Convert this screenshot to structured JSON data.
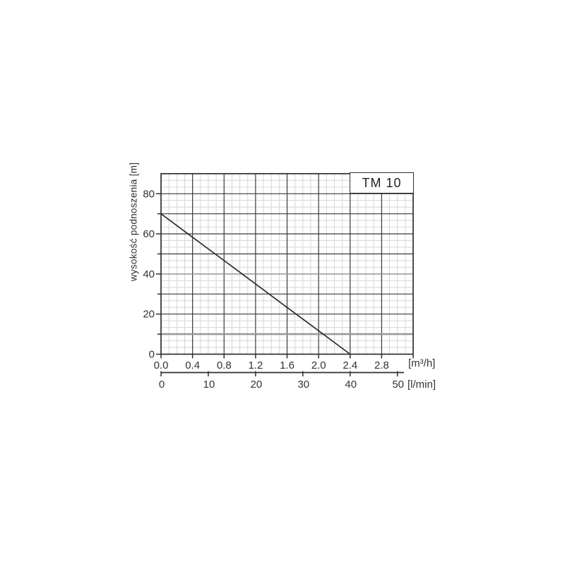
{
  "page": {
    "background": "#ffffff"
  },
  "chart_data": {
    "type": "line",
    "series_label": "TM 10",
    "ylabel": "wysokość podnoszenia [m]",
    "y_axis": {
      "min": 0,
      "max": 90,
      "major_step": 10,
      "labeled_ticks": [
        0,
        20,
        40,
        60,
        80
      ]
    },
    "x_axis_primary": {
      "unit": "[m³/h]",
      "min": 0,
      "max": 3.2,
      "tick_values": [
        0,
        0.4,
        0.8,
        1.2,
        1.6,
        2.0,
        2.4,
        2.8
      ],
      "tick_labels": [
        "0.0",
        "0.4",
        "0.8",
        "1.2",
        "1.6",
        "2.0",
        "2.4",
        "2.8"
      ]
    },
    "x_axis_secondary": {
      "unit": "[l/min]",
      "tick_values": [
        0,
        10,
        20,
        30,
        40,
        50
      ],
      "tick_labels": [
        "0",
        "10",
        "20",
        "30",
        "40",
        "50"
      ],
      "m3h_per_lmin": 0.06
    },
    "series": [
      {
        "name": "TM 10",
        "x": [
          0,
          0.4,
          0.8,
          1.2,
          1.6,
          2.0,
          2.4
        ],
        "y": [
          70,
          58.3,
          46.7,
          35,
          23.3,
          11.7,
          0
        ]
      }
    ],
    "grid": {
      "grid_on": true,
      "minor_x_step": 0.1,
      "minor_y_step": 3.333
    },
    "legend_position": "top-right-inside-box"
  },
  "colors": {
    "background": "#ffffff",
    "axis": "#2f2f2f",
    "grid_minor": "#d6d6d6",
    "grid_major": "#3a3a3a",
    "grid_major_gray_40": "#8c8c8c",
    "grid_major_gray_10": "#9a9a9a",
    "curve": "#2b2b2b",
    "text": "#333333"
  }
}
